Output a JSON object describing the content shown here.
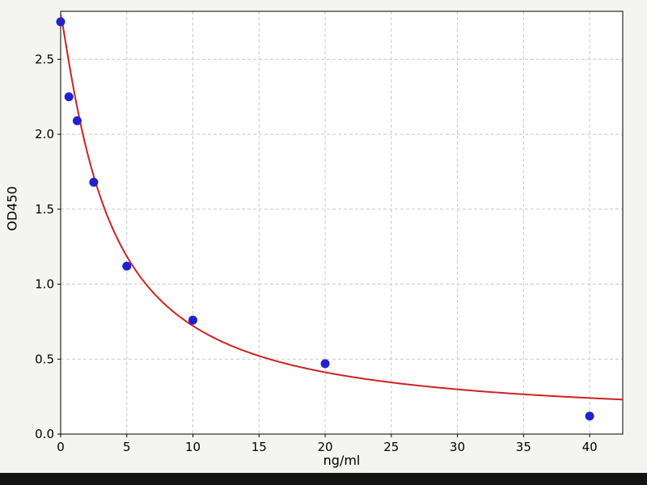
{
  "figure": {
    "background": "#f4f4f1",
    "plot_background": "#ffffff",
    "grid_color": "#c9c9c9",
    "axis_color": "#000000",
    "bottom_bar_color": "#141414"
  },
  "chart_data": {
    "type": "scatter",
    "title": "",
    "xlabel": "ng/ml",
    "ylabel": "OD450",
    "xlim": [
      0,
      42.5
    ],
    "ylim": [
      0,
      2.82
    ],
    "grid": true,
    "legend": false,
    "xticks": [
      0,
      5,
      10,
      15,
      20,
      25,
      30,
      35,
      40
    ],
    "xtick_labels": [
      "0",
      "5",
      "10",
      "15",
      "20",
      "25",
      "30",
      "35",
      "40"
    ],
    "yticks": [
      0,
      0.5,
      1,
      1.5,
      2,
      2.5
    ],
    "ytick_labels": [
      "0.0",
      "0.5",
      "1.0",
      "1.5",
      "2.0",
      "2.5"
    ],
    "point_color": "#2121cd",
    "curve_color": "#cc2222",
    "points": [
      {
        "x": 0.0,
        "y": 2.75
      },
      {
        "x": 0.625,
        "y": 2.25
      },
      {
        "x": 1.25,
        "y": 2.09
      },
      {
        "x": 2.5,
        "y": 1.68
      },
      {
        "x": 5.0,
        "y": 1.12
      },
      {
        "x": 10.0,
        "y": 0.76
      },
      {
        "x": 20.0,
        "y": 0.47
      },
      {
        "x": 40.0,
        "y": 0.12
      }
    ],
    "fit_curve": {
      "model": "4pl",
      "a": 2.8,
      "b": 1.15,
      "c": 3.6,
      "d": 0.08
    }
  }
}
